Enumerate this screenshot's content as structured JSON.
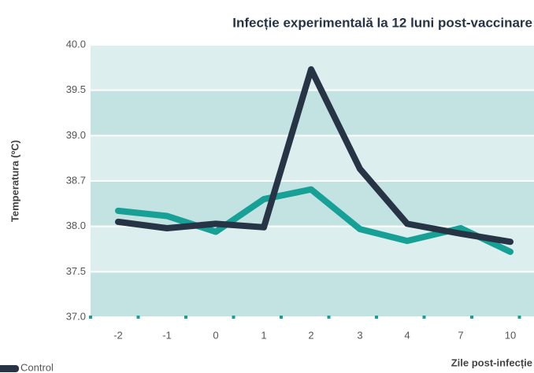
{
  "chart_data": {
    "type": "line",
    "title": "Infecție experimentală la 12 luni post-vaccinare",
    "x_label": "Zile post-infecție",
    "y_label": "Temperatura (ºC)",
    "categories": [
      "-2",
      "-1",
      "0",
      "1",
      "2",
      "3",
      "4",
      "7",
      "10"
    ],
    "series": [
      {
        "color": "#17a096",
        "values": [
          38.24,
          38.16,
          37.94,
          38.42,
          38.57,
          37.97,
          37.84,
          37.98,
          37.72
        ]
      },
      {
        "name": "Control",
        "color": "#263445",
        "values": [
          38.07,
          37.98,
          38.04,
          37.99,
          39.73,
          38.78,
          38.04,
          37.92,
          37.83
        ]
      }
    ],
    "ylim": [
      37.0,
      40.0
    ],
    "yticks": [
      {
        "value": 37.0,
        "label": "37.0"
      },
      {
        "value": 37.5,
        "label": "37.5"
      },
      {
        "value": 38.0,
        "label": "38.0"
      },
      {
        "value": 38.7,
        "label": "38.7"
      },
      {
        "value": 39.0,
        "label": "39.0"
      },
      {
        "value": 39.5,
        "label": "39.5"
      },
      {
        "value": 40.0,
        "label": "40.0"
      }
    ],
    "legend": "bottom-left"
  }
}
